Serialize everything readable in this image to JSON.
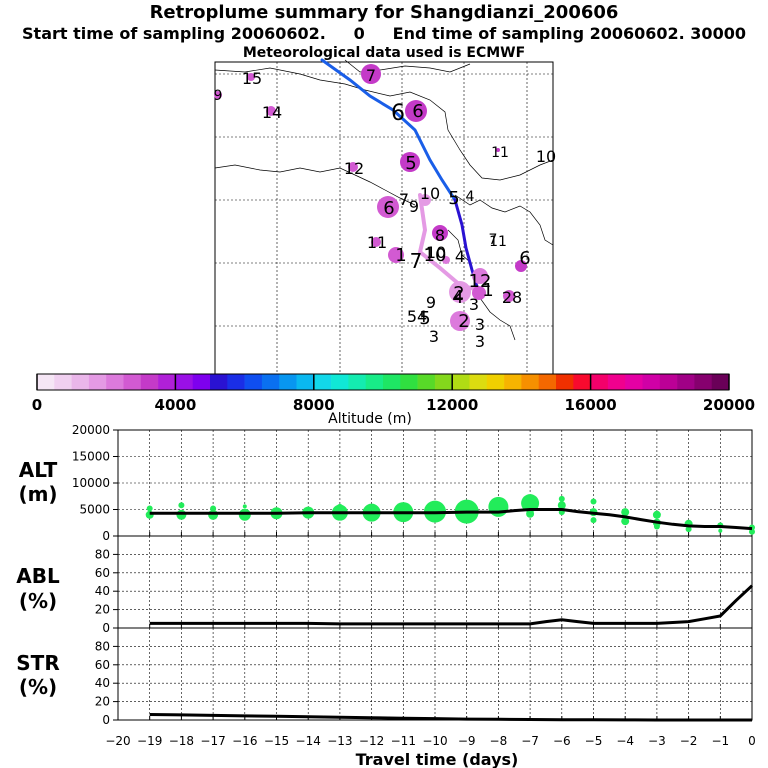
{
  "header": {
    "title": "Retroplume summary for Shangdianzi_200606",
    "sampling_line": "Start time of sampling 20060602.     0     End time of sampling 20060602. 30000",
    "met_line": "Meteorological data used is ECMWF"
  },
  "colorbar": {
    "min": 0,
    "max": 20000,
    "tick_values": [
      0,
      4000,
      8000,
      12000,
      16000,
      20000
    ],
    "tick_labels": [
      "0",
      "4000",
      "8000",
      "12000",
      "16000",
      "20000"
    ],
    "label": "Altitude  (m)",
    "colors": [
      "#f5e6f5",
      "#f0d0f0",
      "#eab6ea",
      "#e49ae4",
      "#dc7adc",
      "#d25ad2",
      "#c43ac8",
      "#b020d8",
      "#9a10e6",
      "#7e00ee",
      "#2a12d2",
      "#1a2ee6",
      "#0f4ef0",
      "#0a70f0",
      "#0896f0",
      "#0ab8f0",
      "#12d8ea",
      "#10e8d6",
      "#14ecb0",
      "#18ec88",
      "#1ee664",
      "#30e040",
      "#58da28",
      "#84d81c",
      "#b0dc14",
      "#dcdc10",
      "#f0d000",
      "#f6b400",
      "#f69000",
      "#f46800",
      "#f03000",
      "#f80a2e",
      "#f4006a",
      "#f0008e",
      "#e400a4",
      "#d000a6",
      "#bc0096",
      "#a00086",
      "#86006e",
      "#6a0058"
    ]
  },
  "map": {
    "trajectory_labels": [
      "15",
      "9",
      "14",
      "7",
      "6",
      "6",
      "12",
      "11",
      "10",
      "5",
      "5",
      "4",
      "6",
      "7",
      "9",
      "10",
      "11",
      "10",
      "7",
      "10",
      "4",
      "11",
      "6",
      "1",
      "8",
      "4",
      "12",
      "2",
      "3",
      "28",
      "2",
      "9",
      "5",
      "54",
      "3",
      "1",
      "3",
      "7",
      "3"
    ]
  },
  "chart_data": [
    {
      "type": "line",
      "panel": "ALT",
      "ylabel_line1": "ALT",
      "ylabel_line2": "(m)",
      "ylim": [
        0,
        20000
      ],
      "y_ticks": [
        0,
        5000,
        10000,
        15000,
        20000
      ],
      "y_tick_labels": [
        "0",
        "5000",
        "10000",
        "15000",
        "20000"
      ],
      "x": [
        -19,
        -18,
        -17,
        -16,
        -15,
        -14,
        -13,
        -12,
        -11,
        -10,
        -9,
        -8,
        -7.5,
        -7,
        -6.5,
        -6,
        -5.5,
        -5,
        -4.5,
        -4,
        -3.5,
        -3,
        -2.5,
        -2,
        -1.5,
        -1,
        -0.5,
        0
      ],
      "values": [
        4300,
        4300,
        4300,
        4300,
        4300,
        4400,
        4400,
        4400,
        4400,
        4400,
        4500,
        4500,
        4800,
        5000,
        5000,
        5000,
        4600,
        4300,
        4000,
        3600,
        3100,
        2600,
        2200,
        1900,
        1800,
        1800,
        1600,
        1400
      ],
      "spread_points": [
        {
          "x": -19,
          "y": 4000,
          "r": 4
        },
        {
          "x": -19,
          "y": 5200,
          "r": 3
        },
        {
          "x": -18,
          "y": 4000,
          "r": 5
        },
        {
          "x": -18,
          "y": 5800,
          "r": 3
        },
        {
          "x": -17,
          "y": 4000,
          "r": 5
        },
        {
          "x": -17,
          "y": 5200,
          "r": 3
        },
        {
          "x": -16,
          "y": 4000,
          "r": 6
        },
        {
          "x": -16,
          "y": 5600,
          "r": 2
        },
        {
          "x": -15,
          "y": 4300,
          "r": 6
        },
        {
          "x": -14,
          "y": 4400,
          "r": 6
        },
        {
          "x": -13,
          "y": 4400,
          "r": 8
        },
        {
          "x": -13,
          "y": 5500,
          "r": 3
        },
        {
          "x": -12,
          "y": 4400,
          "r": 9
        },
        {
          "x": -11,
          "y": 4500,
          "r": 10
        },
        {
          "x": -10,
          "y": 4600,
          "r": 11
        },
        {
          "x": -9,
          "y": 4600,
          "r": 12
        },
        {
          "x": -8,
          "y": 5500,
          "r": 10
        },
        {
          "x": -7,
          "y": 6200,
          "r": 9
        },
        {
          "x": -7,
          "y": 4200,
          "r": 4
        },
        {
          "x": -6,
          "y": 7000,
          "r": 3
        },
        {
          "x": -6,
          "y": 5800,
          "r": 4
        },
        {
          "x": -6,
          "y": 4500,
          "r": 3
        },
        {
          "x": -5,
          "y": 6500,
          "r": 3
        },
        {
          "x": -5,
          "y": 4500,
          "r": 4
        },
        {
          "x": -5,
          "y": 3000,
          "r": 3
        },
        {
          "x": -4,
          "y": 4500,
          "r": 4
        },
        {
          "x": -4,
          "y": 2800,
          "r": 4
        },
        {
          "x": -3,
          "y": 4000,
          "r": 4
        },
        {
          "x": -3,
          "y": 2500,
          "r": 4
        },
        {
          "x": -3,
          "y": 1800,
          "r": 3
        },
        {
          "x": -2,
          "y": 2300,
          "r": 4
        },
        {
          "x": -2,
          "y": 1300,
          "r": 3
        },
        {
          "x": -1,
          "y": 2000,
          "r": 3
        },
        {
          "x": -1,
          "y": 1000,
          "r": 2
        },
        {
          "x": 0,
          "y": 1600,
          "r": 3
        },
        {
          "x": 0,
          "y": 800,
          "r": 3
        }
      ]
    },
    {
      "type": "line",
      "panel": "ABL",
      "ylabel_line1": "ABL",
      "ylabel_line2": "(%)",
      "ylim": [
        0,
        100
      ],
      "y_ticks": [
        0,
        20,
        40,
        60,
        80
      ],
      "y_tick_labels": [
        "0",
        "20",
        "40",
        "60",
        "80"
      ],
      "x": [
        -19,
        -18,
        -17,
        -16,
        -15,
        -14,
        -13,
        -12,
        -11,
        -10,
        -9,
        -8,
        -7,
        -6.5,
        -6,
        -5.5,
        -5,
        -4,
        -3,
        -2.5,
        -2,
        -1.5,
        -1,
        -0.5,
        0
      ],
      "values": [
        5,
        5,
        5,
        5,
        5,
        5,
        4.5,
        4.5,
        4.5,
        4.5,
        4.5,
        4.5,
        4.5,
        7,
        9,
        7,
        5,
        5,
        5,
        6,
        7,
        10,
        13,
        30,
        46
      ]
    },
    {
      "type": "line",
      "panel": "STR",
      "ylabel_line1": "STR",
      "ylabel_line2": "(%)",
      "ylim": [
        0,
        100
      ],
      "y_ticks": [
        0,
        20,
        40,
        60,
        80
      ],
      "y_tick_labels": [
        "0",
        "20",
        "40",
        "60",
        "80"
      ],
      "x": [
        -19,
        -18,
        -17,
        -16,
        -15,
        -14,
        -13,
        -12,
        -11,
        -10,
        -9,
        -8,
        -7,
        -6,
        -5,
        -4,
        -3,
        -2,
        -1,
        0
      ],
      "values": [
        6,
        5.5,
        5,
        4.5,
        4,
        3.5,
        3,
        2.5,
        2,
        1.5,
        1,
        0.8,
        0.5,
        0.3,
        0.2,
        0.1,
        0,
        0,
        0,
        0
      ]
    },
    {
      "type": "axis",
      "xlabel": "Travel time (days)",
      "xlim": [
        -20,
        0
      ],
      "x_ticks": [
        -20,
        -19,
        -18,
        -17,
        -16,
        -15,
        -14,
        -13,
        -12,
        -11,
        -10,
        -9,
        -8,
        -7,
        -6,
        -5,
        -4,
        -3,
        -2,
        -1,
        0
      ],
      "x_tick_labels": [
        "−20",
        "−19",
        "−18",
        "−17",
        "−16",
        "−15",
        "−14",
        "−13",
        "−12",
        "−11",
        "−10",
        "−9",
        "−8",
        "−7",
        "−6",
        "−5",
        "−4",
        "−3",
        "−2",
        "−1",
        "0"
      ]
    }
  ]
}
